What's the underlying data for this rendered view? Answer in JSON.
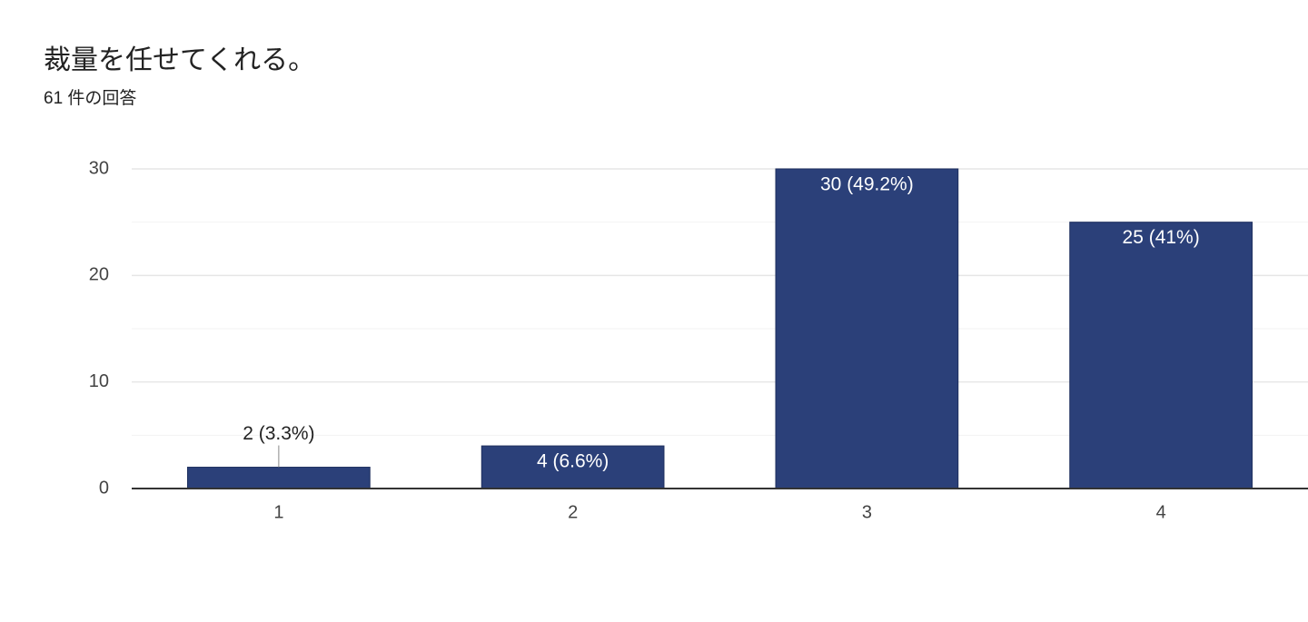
{
  "chart_data": {
    "type": "bar",
    "title": "裁量を任せてくれる。",
    "subtitle": "61 件の回答",
    "categories": [
      "1",
      "2",
      "3",
      "4"
    ],
    "values": [
      2,
      4,
      30,
      25
    ],
    "value_labels": [
      "2 (3.3%)",
      "4 (6.6%)",
      "30 (49.2%)",
      "25 (41%)"
    ],
    "color": "#2b4079",
    "ylim": [
      0,
      30
    ],
    "yticks": [
      0,
      10,
      20,
      30
    ],
    "minor_yticks": [
      5,
      15,
      25
    ],
    "grid": true
  }
}
